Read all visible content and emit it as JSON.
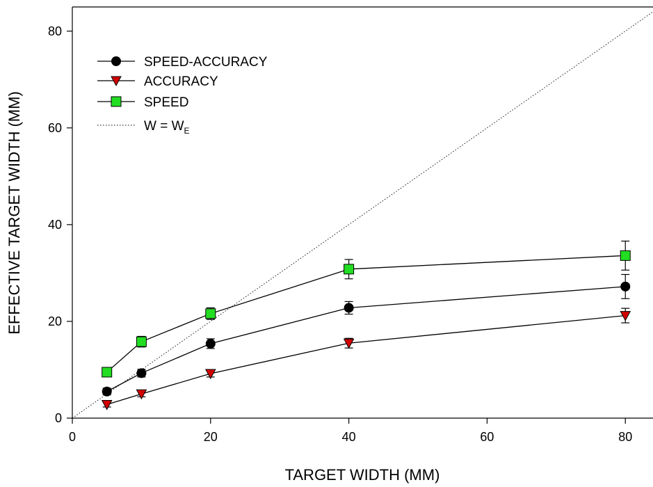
{
  "chart_data": {
    "type": "line",
    "title": "",
    "xlabel": "TARGET WIDTH (MM)",
    "ylabel": "EFFECTIVE TARGET WIDTH (MM)",
    "x_ticks": [
      "0",
      "20",
      "40",
      "60",
      "80"
    ],
    "y_ticks": [
      "0",
      "20",
      "40",
      "60",
      "80"
    ],
    "xlim": [
      0,
      84
    ],
    "ylim": [
      0,
      85
    ],
    "grid": false,
    "legend_position": "top-left",
    "x": [
      5,
      10,
      20,
      40,
      80
    ],
    "series": [
      {
        "name": "SPEED-ACCURACY",
        "marker": "circle",
        "color": "#000000",
        "values": [
          5.5,
          9.3,
          15.4,
          22.8,
          27.2
        ],
        "errors": [
          0.7,
          0.8,
          1.0,
          1.3,
          2.5
        ]
      },
      {
        "name": "ACCURACY",
        "marker": "triangle-down",
        "color": "#d40000",
        "values": [
          2.8,
          5.0,
          9.2,
          15.5,
          21.2
        ],
        "errors": [
          0.5,
          0.6,
          0.7,
          1.0,
          1.5
        ]
      },
      {
        "name": "SPEED",
        "marker": "square",
        "color": "#22dd22",
        "values": [
          9.5,
          15.8,
          21.6,
          30.8,
          33.6
        ],
        "errors": [
          0.7,
          1.1,
          1.2,
          2.0,
          3.0
        ]
      }
    ],
    "reference_line": {
      "label_main": "W = W",
      "label_sub": "E",
      "style": "dotted",
      "from": [
        0,
        0
      ],
      "to": [
        84,
        84
      ]
    }
  }
}
